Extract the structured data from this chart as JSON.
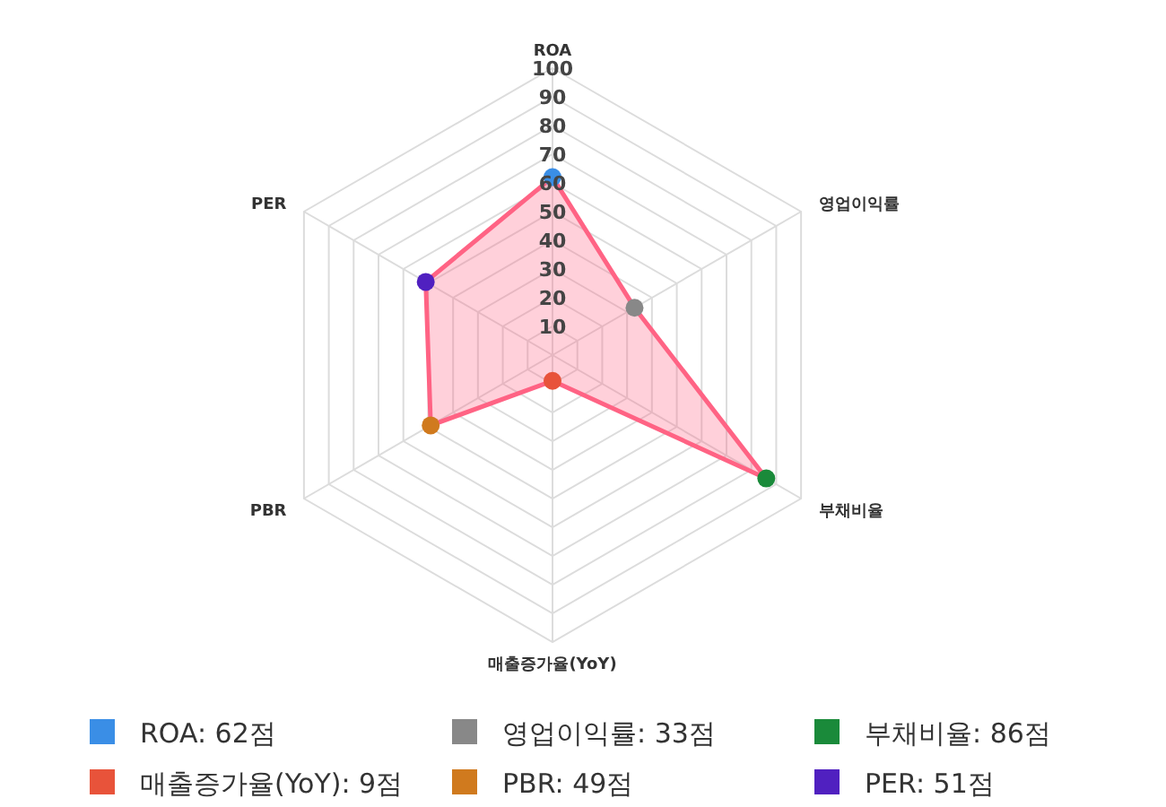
{
  "chart_data": {
    "type": "radar",
    "categories": [
      "ROA",
      "영업이익률",
      "부채비율",
      "매출증가율(YoY)",
      "PBR",
      "PER"
    ],
    "series": [
      {
        "color": "#ff6384",
        "values": [
          62,
          33,
          86,
          9,
          49,
          51
        ],
        "colors": [
          "#3a8ee6",
          "#888888",
          "#1a8a3a",
          "#e8533a",
          "#d07a1e",
          "#5020c0"
        ]
      }
    ],
    "annotations": [
      "ROA: 62점",
      "영업이익률: 33점",
      "부채비율: 86점",
      "매출증가율(YoY): 9점",
      "PBR: 49점",
      "PER: 51점"
    ],
    "ylim": [
      0,
      100
    ],
    "yticks": [
      10,
      20,
      30,
      40,
      50,
      60,
      70,
      80,
      90,
      100
    ],
    "grid": true,
    "marker": "circle"
  }
}
